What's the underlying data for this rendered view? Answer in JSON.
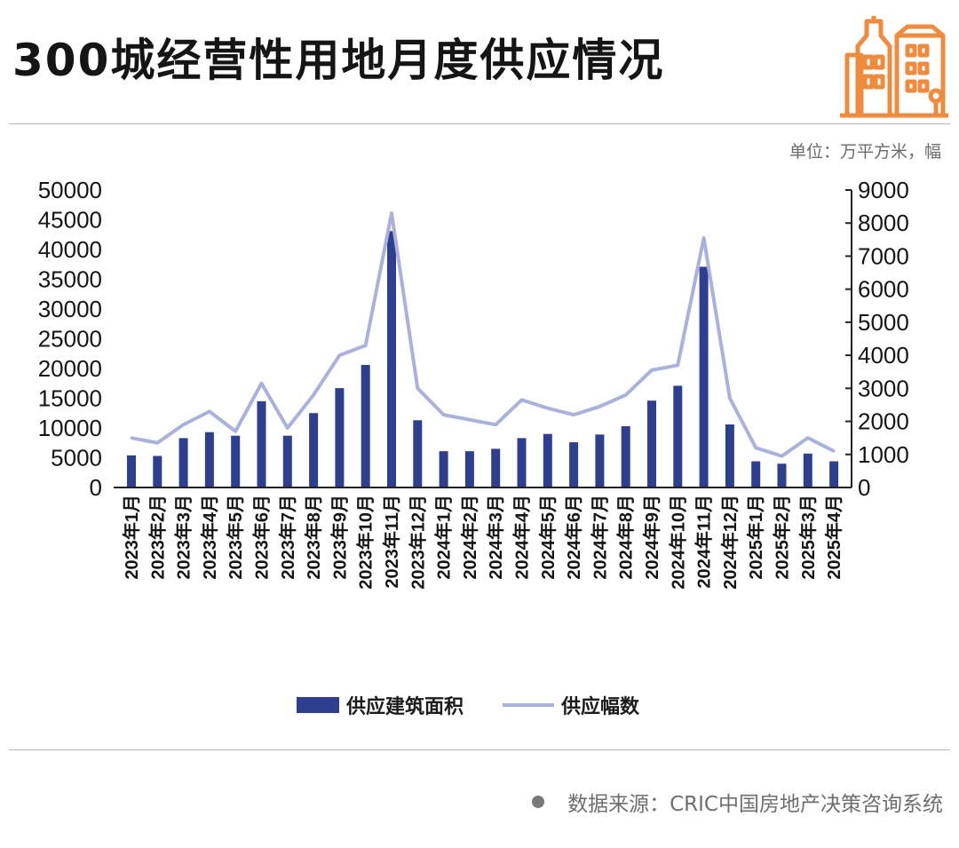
{
  "header": {
    "title": "300城经营性用地月度供应情况",
    "unit": "单位：万平方米，幅"
  },
  "footer": {
    "source": "数据来源：CRIC中国房地产决策咨询系统"
  },
  "colors": {
    "bar": "#2d3f8e",
    "line": "#a9b1dc",
    "logo": "#f08a3c"
  },
  "icons": {
    "logo": "building-icon"
  },
  "chart_data": {
    "type": "bar+line",
    "categories": [
      "2023年1月",
      "2023年2月",
      "2023年3月",
      "2023年4月",
      "2023年5月",
      "2023年6月",
      "2023年7月",
      "2023年8月",
      "2023年9月",
      "2023年10月",
      "2023年11月",
      "2023年12月",
      "2024年1月",
      "2024年2月",
      "2024年3月",
      "2024年4月",
      "2024年5月",
      "2024年6月",
      "2024年7月",
      "2024年8月",
      "2024年9月",
      "2024年10月",
      "2024年11月",
      "2024年12月",
      "2025年1月",
      "2025年2月",
      "2025年3月",
      "2025年4月"
    ],
    "series": [
      {
        "name": "供应建筑面积",
        "type": "bar",
        "axis": "left",
        "values": [
          5400,
          5300,
          8300,
          9300,
          8700,
          14500,
          8700,
          12500,
          16700,
          20600,
          43100,
          11300,
          6100,
          6100,
          6500,
          8300,
          9000,
          7600,
          8900,
          10300,
          14600,
          17100,
          37100,
          10600,
          4400,
          4000,
          5700,
          4400
        ]
      },
      {
        "name": "供应幅数",
        "type": "line",
        "axis": "right",
        "values": [
          1500,
          1350,
          1900,
          2300,
          1700,
          3150,
          1800,
          2800,
          4000,
          4300,
          8300,
          3000,
          2200,
          2050,
          1900,
          2650,
          2400,
          2200,
          2450,
          2800,
          3550,
          3700,
          7550,
          2700,
          1200,
          950,
          1500,
          1100
        ]
      }
    ],
    "y_left": {
      "ticks": [
        0,
        5000,
        10000,
        15000,
        20000,
        25000,
        30000,
        35000,
        40000,
        45000,
        50000
      ],
      "ylim": [
        0,
        50000
      ]
    },
    "y_right": {
      "ticks": [
        0,
        1000,
        2000,
        3000,
        4000,
        5000,
        6000,
        7000,
        8000,
        9000
      ],
      "ylim": [
        0,
        9000
      ]
    },
    "legend": {
      "placement": "bottom-center"
    },
    "grid": false
  }
}
